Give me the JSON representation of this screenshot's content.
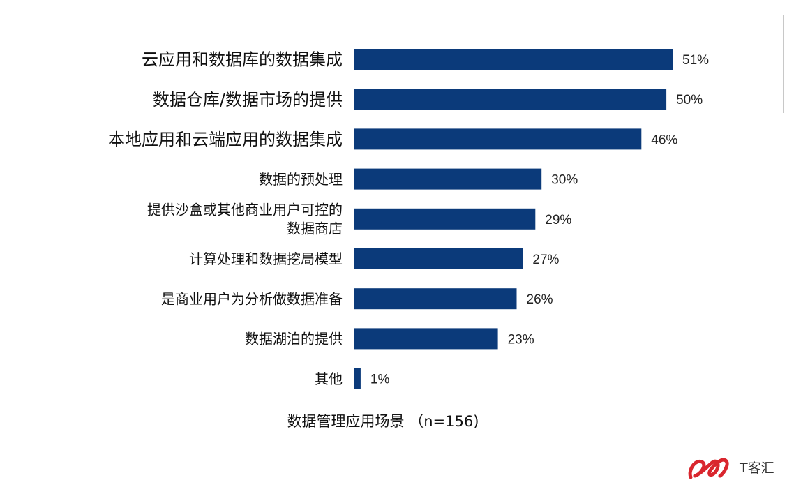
{
  "chart_data": {
    "type": "bar",
    "orientation": "horizontal",
    "categories": [
      [
        "云应用和数据库的数据集成"
      ],
      [
        "数据仓库/数据市场的提供"
      ],
      [
        "本地应用和云端应用的数据集成"
      ],
      [
        "数据的预处理"
      ],
      [
        "提供沙盒或其他商业用户可控的",
        "数据商店"
      ],
      [
        "计算处理和数据挖局模型"
      ],
      [
        "是商业用户为分析做数据准备"
      ],
      [
        "数据湖泊的提供"
      ],
      [
        "其他"
      ]
    ],
    "values": [
      51,
      50,
      46,
      30,
      29,
      27,
      26,
      23,
      1
    ],
    "value_labels": [
      "51%",
      "50%",
      "46%",
      "30%",
      "29%",
      "27%",
      "26%",
      "23%",
      "1%"
    ],
    "unit": "%",
    "xlim": [
      0,
      51
    ],
    "grid": false,
    "bar_color": "#0b3a7a",
    "caption": "数据管理应用场景 （n=156)"
  },
  "watermark": {
    "text": "T客汇",
    "mark_color": "#d9262e"
  }
}
